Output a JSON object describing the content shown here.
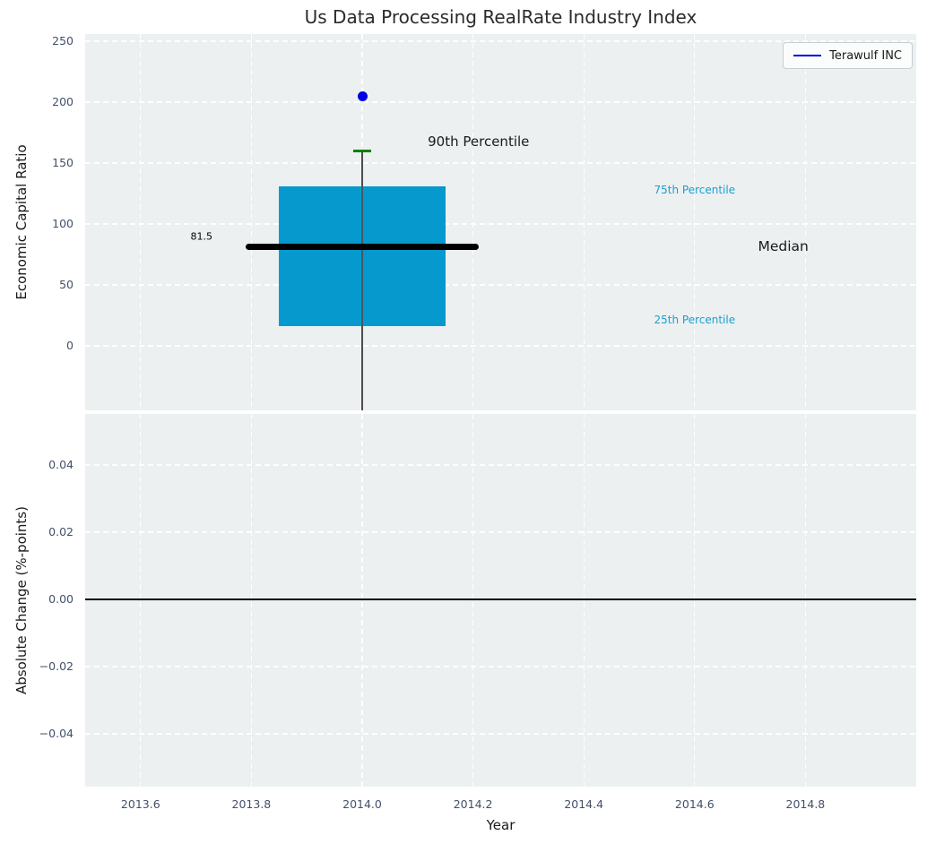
{
  "colors": {
    "axes_bg": "#ecf0f1",
    "grid": "#ffffff",
    "tick_label": "#43506a",
    "title": "#2b2b2b",
    "box_fill": "#0699ce",
    "median_line": "#000000",
    "percentile_cap": "#008000",
    "whisker": "#4d4d4d",
    "company_point": "#0000e6",
    "percentile_label": "#19a0d4",
    "zero_line": "#000000"
  },
  "chart_data": [
    {
      "type": "box",
      "title": "Us Data Processing RealRate Industry Index",
      "ylabel": "Economic Capital Ratio",
      "xlim": [
        2013.5,
        2015.0
      ],
      "ylim": [
        -53,
        256
      ],
      "grid": "white dashed, on",
      "xticks": [
        {
          "v": 2013.6,
          "label": "2013.6"
        },
        {
          "v": 2013.8,
          "label": "2013.8"
        },
        {
          "v": 2014.0,
          "label": "2014.0"
        },
        {
          "v": 2014.2,
          "label": "2014.2"
        },
        {
          "v": 2014.4,
          "label": "2014.4"
        },
        {
          "v": 2014.6,
          "label": "2014.6"
        },
        {
          "v": 2014.8,
          "label": "2014.8"
        }
      ],
      "yticks": [
        {
          "v": 0,
          "label": "0"
        },
        {
          "v": 50,
          "label": "50"
        },
        {
          "v": 100,
          "label": "100"
        },
        {
          "v": 150,
          "label": "150"
        },
        {
          "v": 200,
          "label": "200"
        },
        {
          "v": 250,
          "label": "250"
        }
      ],
      "legend": {
        "position": "upper right",
        "entries": [
          {
            "label": "Terawulf INC",
            "color": "#0000e6"
          }
        ]
      },
      "box": {
        "x": 2014.0,
        "box_left": 2013.85,
        "box_right": 2014.15,
        "q1": 16,
        "median": 81.5,
        "q3": 131,
        "p90": 160,
        "median_line_left": 2013.79,
        "median_line_right": 2014.21,
        "whisker_extends_below_axis": true
      },
      "points": [
        {
          "name": "Terawulf INC",
          "x": 2014.0,
          "y": 205,
          "color": "#0000e6"
        }
      ],
      "annotations": [
        {
          "text": "81.5",
          "x": 2013.71,
          "y": 90,
          "color": "#000000",
          "size": 11
        },
        {
          "text": "90th Percentile",
          "x": 2014.21,
          "y": 168,
          "color": "#1a1a1a",
          "size": 15
        },
        {
          "text": "75th Percentile",
          "x": 2014.6,
          "y": 128,
          "color": "#19a0d4",
          "size": 12
        },
        {
          "text": "Median",
          "x": 2014.76,
          "y": 81.5,
          "color": "#1a1a1a",
          "size": 15.5
        },
        {
          "text": "25th Percentile",
          "x": 2014.6,
          "y": 21,
          "color": "#19a0d4",
          "size": 12
        }
      ]
    },
    {
      "type": "line",
      "ylabel": "Absolute Change (%-points)",
      "xlabel": "Year",
      "xlim": [
        2013.5,
        2015.0
      ],
      "ylim": [
        -0.0557,
        0.0552
      ],
      "grid": "white dashed, on",
      "xticks": [
        {
          "v": 2013.6,
          "label": "2013.6"
        },
        {
          "v": 2013.8,
          "label": "2013.8"
        },
        {
          "v": 2014.0,
          "label": "2014.0"
        },
        {
          "v": 2014.2,
          "label": "2014.2"
        },
        {
          "v": 2014.4,
          "label": "2014.4"
        },
        {
          "v": 2014.6,
          "label": "2014.6"
        },
        {
          "v": 2014.8,
          "label": "2014.8"
        }
      ],
      "yticks": [
        {
          "v": 0.04,
          "label": "0.04"
        },
        {
          "v": 0.02,
          "label": "0.02"
        },
        {
          "v": 0.0,
          "label": "0.00"
        },
        {
          "v": -0.02,
          "label": "−0.02"
        },
        {
          "v": -0.04,
          "label": "−0.04"
        }
      ],
      "zero_line": 0.0,
      "series": []
    }
  ]
}
